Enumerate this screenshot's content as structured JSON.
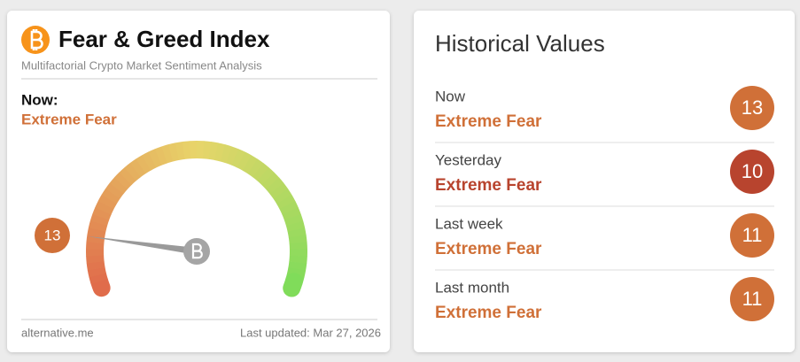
{
  "gauge_card": {
    "title": "Fear & Greed Index",
    "subtitle": "Multifactorial Crypto Market Sentiment Analysis",
    "now_label": "Now:",
    "classification": "Extreme Fear",
    "value": 13,
    "min": 0,
    "max": 100,
    "color": "#d07038",
    "source": "alternative.me",
    "last_updated": "Last updated: Mar 27, 2026"
  },
  "history_card": {
    "title": "Historical Values",
    "rows": [
      {
        "label": "Now",
        "classification": "Extreme Fear",
        "value": 13,
        "color": "#d07038"
      },
      {
        "label": "Yesterday",
        "classification": "Extreme Fear",
        "value": 10,
        "color": "#b8442e"
      },
      {
        "label": "Last week",
        "classification": "Extreme Fear",
        "value": 11,
        "color": "#d07038"
      },
      {
        "label": "Last month",
        "classification": "Extreme Fear",
        "value": 11,
        "color": "#d07038"
      }
    ]
  }
}
